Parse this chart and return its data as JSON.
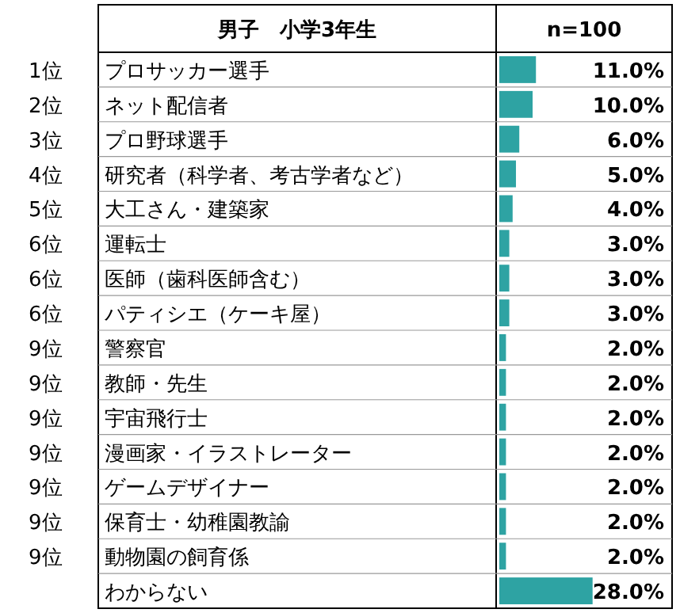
{
  "chart_data": {
    "type": "bar",
    "orientation": "horizontal",
    "title": "男子　小学3年生",
    "subtitle": "n=100",
    "categories": [
      "プロサッカー選手",
      "ネット配信者",
      "プロ野球選手",
      "研究者（科学者、考古学者など）",
      "大工さん・建築家",
      "運転士",
      "医師（歯科医師含む）",
      "パティシエ（ケーキ屋）",
      "警察官",
      "教師・先生",
      "宇宙飛行士",
      "漫画家・イラストレーター",
      "ゲームデザイナー",
      "保育士・幼稚園教諭",
      "動物園の飼育係",
      "わからない"
    ],
    "values": [
      11.0,
      10.0,
      6.0,
      5.0,
      4.0,
      3.0,
      3.0,
      3.0,
      2.0,
      2.0,
      2.0,
      2.0,
      2.0,
      2.0,
      2.0,
      28.0
    ],
    "value_labels": [
      "11.0%",
      "10.0%",
      "6.0%",
      "5.0%",
      "4.0%",
      "3.0%",
      "3.0%",
      "3.0%",
      "2.0%",
      "2.0%",
      "2.0%",
      "2.0%",
      "2.0%",
      "2.0%",
      "2.0%",
      "28.0%"
    ],
    "color": "#2ea3a3",
    "annotations": [
      "1位",
      "2位",
      "3位",
      "4位",
      "5位",
      "6位",
      "6位",
      "6位",
      "9位",
      "9位",
      "9位",
      "9位",
      "9位",
      "9位",
      "9位"
    ]
  }
}
